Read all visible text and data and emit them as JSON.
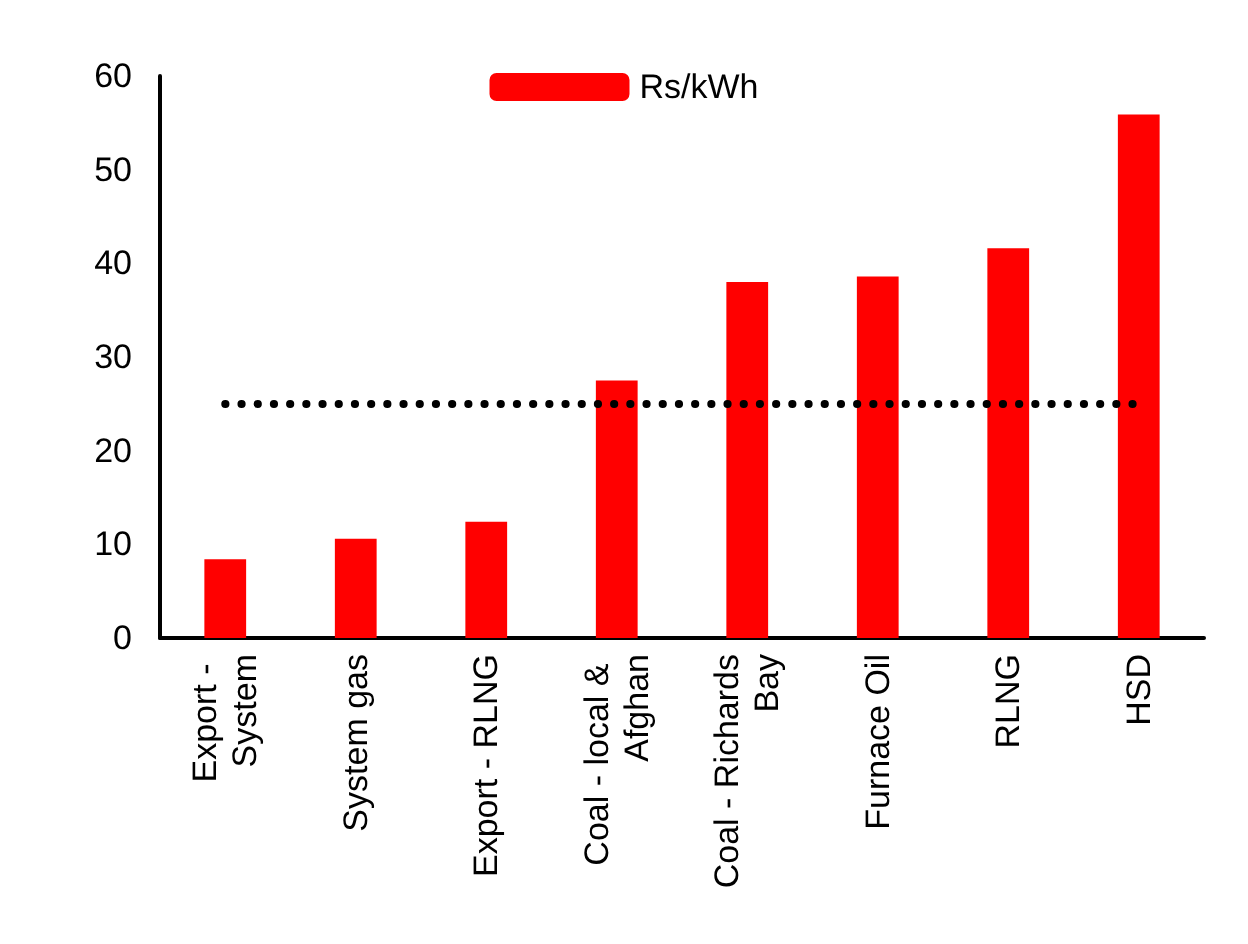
{
  "chart_data": {
    "type": "bar",
    "categories": [
      "Export - System",
      "System gas",
      "Export - RLNG",
      "Coal - local & Afghan",
      "Coal - Richards Bay",
      "Furnace Oil",
      "RLNG",
      "HSD"
    ],
    "series": [
      {
        "name": "Rs/kWh",
        "color": "#ff0000",
        "values": [
          8.4,
          10.6,
          12.4,
          27.5,
          38,
          38.6,
          41.6,
          55.9
        ]
      }
    ],
    "ylim": [
      0,
      60
    ],
    "yticks": [
      0,
      10,
      20,
      30,
      40,
      50,
      60
    ],
    "grid": false,
    "legend": "top",
    "ref_lines": [
      {
        "axis": "y",
        "value": 25,
        "color": "#000000",
        "line_style": "dotted"
      }
    ]
  }
}
